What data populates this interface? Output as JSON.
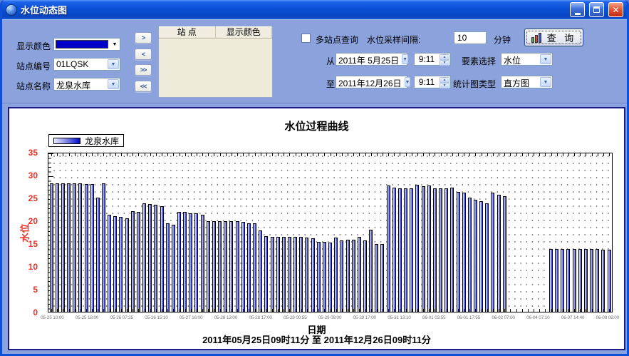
{
  "window": {
    "title": "水位动态图"
  },
  "controls": {
    "display_color_label": "显示颜色",
    "display_color_value": "#0000C8",
    "station_id_label": "站点编号",
    "station_id_value": "01LQSK",
    "station_name_label": "站点名称",
    "station_name_value": "龙泉水库",
    "transfer_buttons": [
      ">",
      "<",
      ">>",
      "<<"
    ],
    "table": {
      "headers": [
        "站  点",
        "显示颜色"
      ]
    },
    "multi_station_label": "多站点查询",
    "interval_label": "水位采样间隔:",
    "interval_value": "10",
    "interval_unit": "分钟",
    "query_label": "查  询",
    "from_label": "从",
    "from_date": "2011年 5月25日",
    "from_time": "9:11",
    "to_label": "至",
    "to_date": "2011年12月26日",
    "to_time": "9:11",
    "element_label": "要素选择",
    "element_value": "水位",
    "chart_type_label": "统计图类型",
    "chart_type_value": "直方图"
  },
  "chart_data": {
    "type": "bar",
    "title": "水位过程曲线",
    "legend": [
      "龙泉水库"
    ],
    "xlabel": "日期",
    "ylabel": "水位",
    "ylim": [
      0,
      35
    ],
    "yticks": [
      0,
      5,
      10,
      15,
      20,
      25,
      30,
      35
    ],
    "grid": "dotted",
    "legend_position": "top-left",
    "bar_color_gradient": [
      "#E6E9FF",
      "#2830C0"
    ],
    "axis_label_color": "#F03028",
    "x_tick_labels": [
      "05-25 10:00",
      "05-25 18:00",
      "05-26 07:25",
      "05-26 15:10",
      "05-27 16:00",
      "05-28 13:00",
      "05-28 17:00",
      "05-29 00:55",
      "05-29 08:00",
      "05-29 17:00",
      "05-31 13:10",
      "06-01 03:55",
      "06-01 17:55",
      "06-02 07:00",
      "06-04 07:10",
      "06-07 14:40",
      "06-09 08:00"
    ],
    "footer": "2011年05月25日09时11分 至 2011年12月26日09时11分",
    "values": [
      28.4,
      28.4,
      28.4,
      28.4,
      28.4,
      28.4,
      28.3,
      28.3,
      25.3,
      28.4,
      21.4,
      21.2,
      20.9,
      20.6,
      22.2,
      22.1,
      24.0,
      23.8,
      23.7,
      23.3,
      19.6,
      19.2,
      22.0,
      22.0,
      21.7,
      21.7,
      21.5,
      20.1,
      20.0,
      20.0,
      20.1,
      20.0,
      20.0,
      19.8,
      19.6,
      19.5,
      18.0,
      16.7,
      16.6,
      16.5,
      16.5,
      16.6,
      16.5,
      16.5,
      16.4,
      16.3,
      15.4,
      15.4,
      15.3,
      16.4,
      15.8,
      16.0,
      15.9,
      16.6,
      15.7,
      18.2,
      15.0,
      15.0,
      27.9,
      27.5,
      27.2,
      27.2,
      27.3,
      28.0,
      27.8,
      27.9,
      27.2,
      27.2,
      27.2,
      27.4,
      26.5,
      26.4,
      25.3,
      24.7,
      24.5,
      24.0,
      26.4,
      25.9,
      25.5,
      null,
      null,
      null,
      null,
      null,
      null,
      null,
      13.9,
      13.9,
      13.9,
      13.9,
      13.8,
      13.8,
      13.8,
      13.8,
      13.8,
      13.7,
      13.7
    ]
  }
}
